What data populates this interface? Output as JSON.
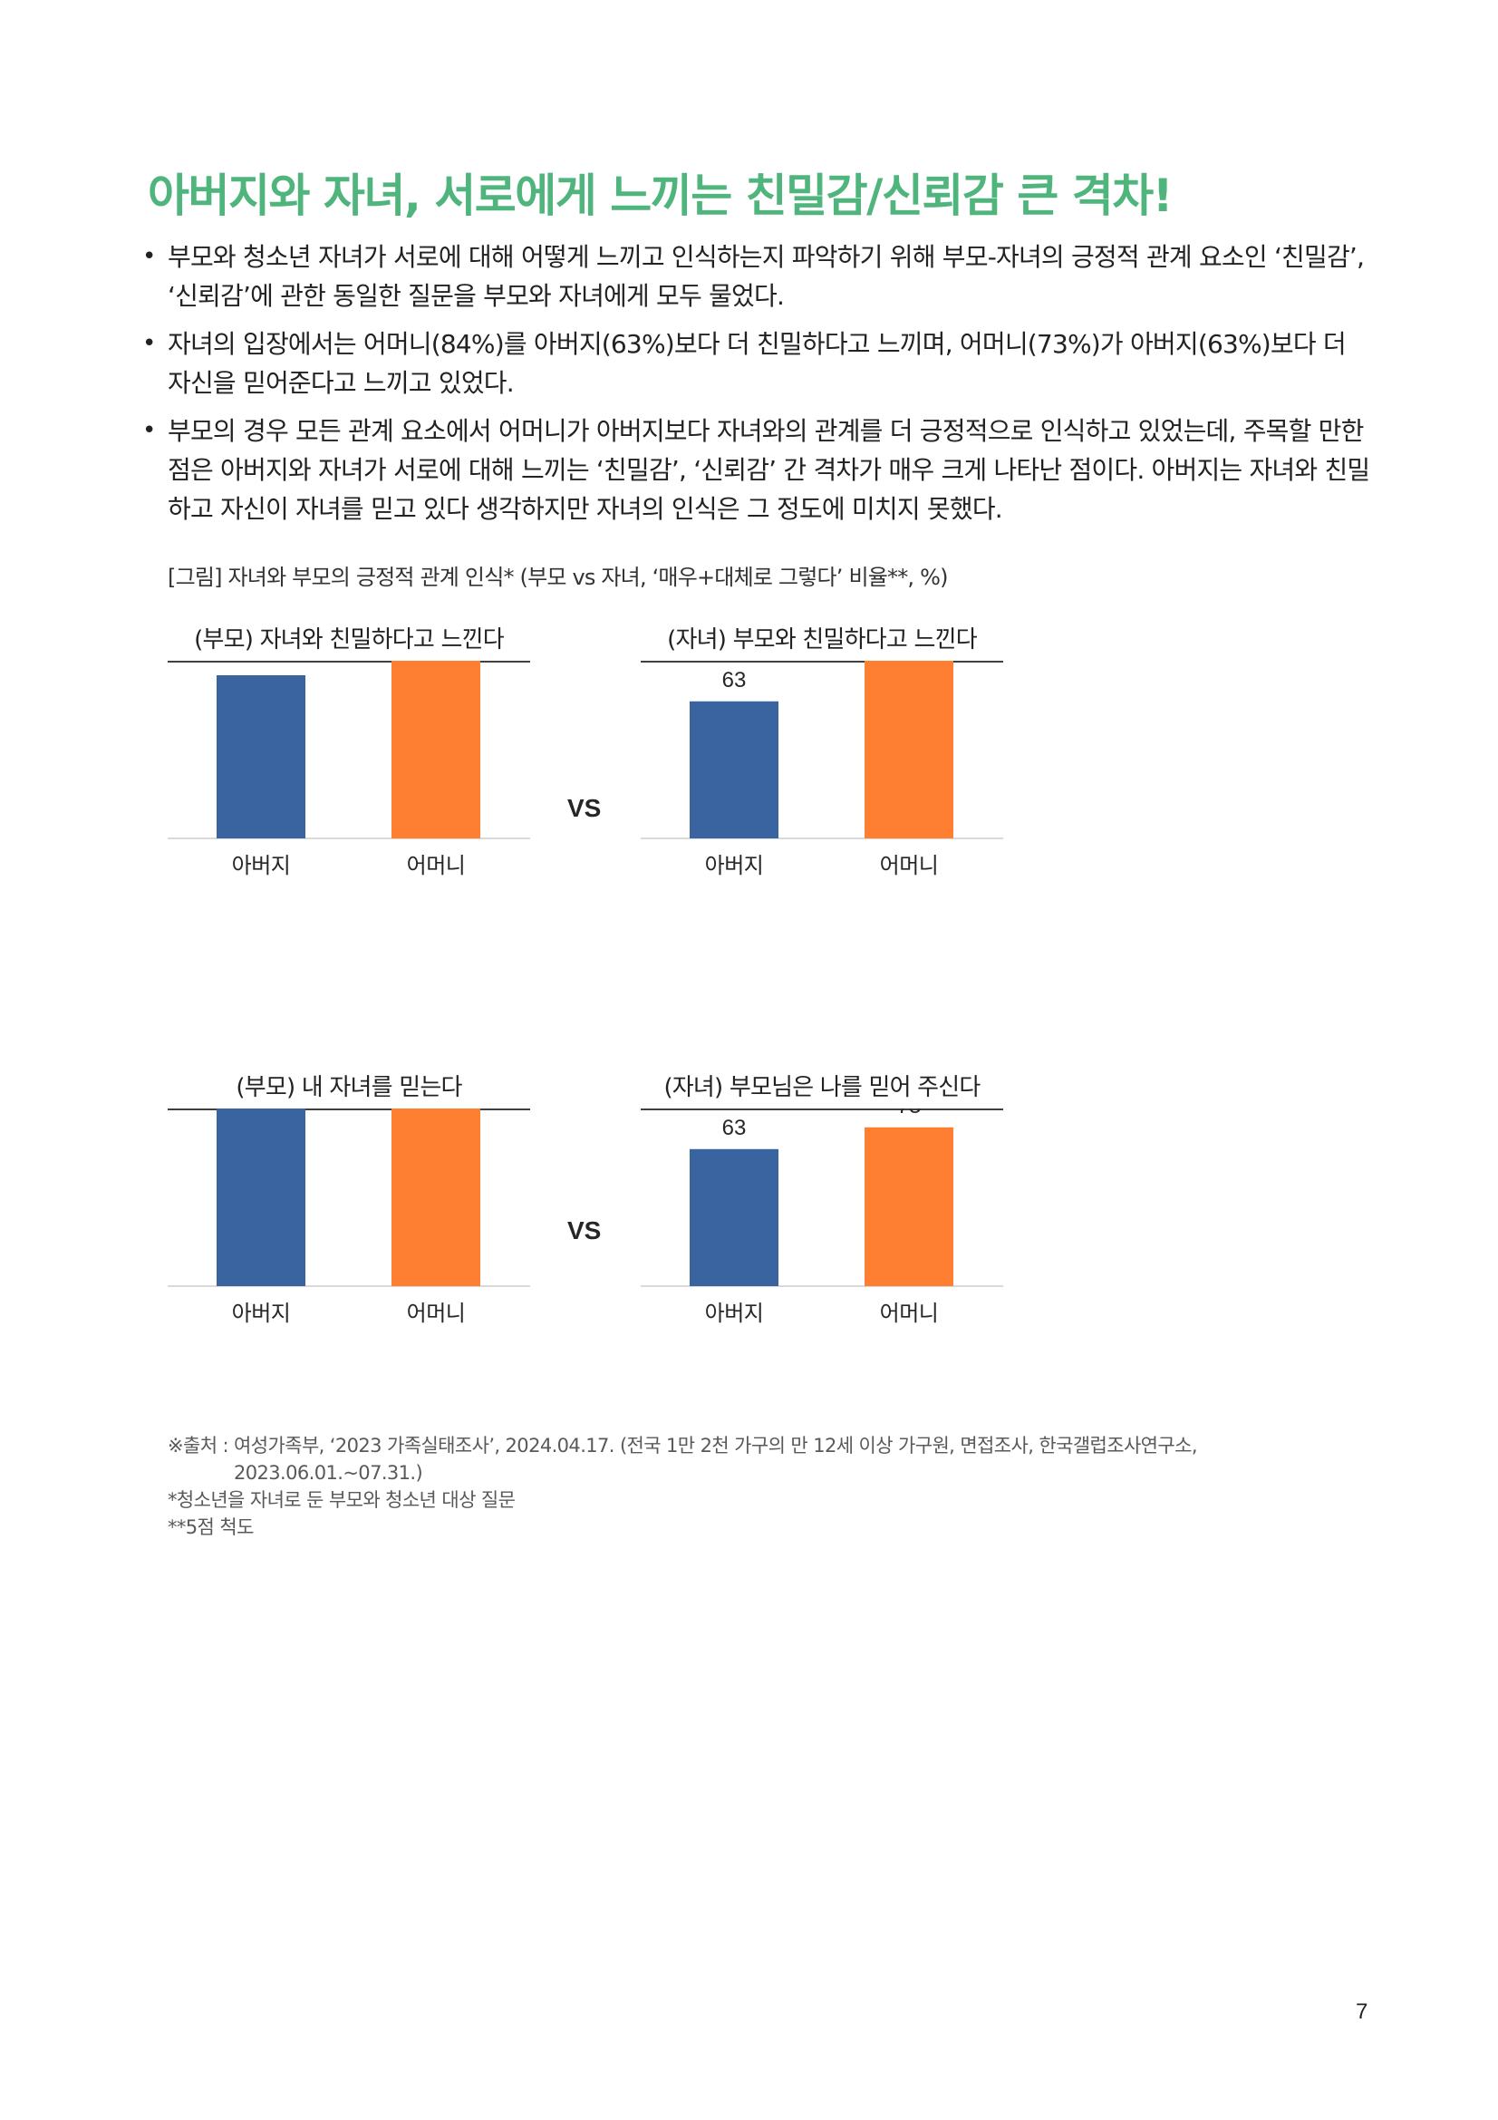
{
  "title": "아버지와 자녀, 서로에게 느끼는 친밀감/신뢰감 큰 격차!",
  "bullets": [
    "부모와 청소년 자녀가 서로에 대해 어떻게 느끼고 인식하는지 파악하기 위해 부모-자녀의 긍정적 관계 요소인 ‘친밀감’, ‘신뢰감’에 관한 동일한 질문을 부모와 자녀에게 모두 물었다.",
    "자녀의 입장에서는 어머니(84%)를 아버지(63%)보다 더 친밀하다고 느끼며, 어머니(73%)가 아버지(63%)보다 더 자신을 믿어준다고 느끼고 있었다.",
    "부모의 경우 모든 관계 요소에서 어머니가 아버지보다 자녀와의 관계를 더 긍정적으로 인식하고 있었는데, 주목할 만한 점은 아버지와 자녀가 서로에 대해 느끼는 ‘친밀감’, ‘신뢰감’ 간 격차가 매우 크게 나타난 점이다. 아버지는 자녀와 친밀하고 자신이 자녀를 믿고 있다 생각하지만 자녀의 인식은 그 정도에 미치지 못했다."
  ],
  "figure_caption": "[그림] 자녀와 부모의 긍정적 관계 인식* (부모 vs 자녀, ‘매우+대체로 그렇다’ 비율**, %)",
  "vs_label": "VS",
  "colors": {
    "title": "#4fb57c",
    "father": "#3a64a0",
    "mother": "#ff7f32",
    "axis": "#d9d9d9",
    "title_rule": "#404040"
  },
  "chart_data": [
    {
      "type": "bar",
      "title": "(부모) 자녀와 친밀하다고 느낀다",
      "categories": [
        "아버지",
        "어머니"
      ],
      "values": [
        75,
        84
      ],
      "ylim": [
        0,
        100
      ],
      "xlabel": "",
      "ylabel": "",
      "grid": false
    },
    {
      "type": "bar",
      "title": "(자녀) 부모와 친밀하다고 느낀다",
      "categories": [
        "아버지",
        "어머니"
      ],
      "values": [
        63,
        84
      ],
      "ylim": [
        0,
        100
      ],
      "xlabel": "",
      "ylabel": "",
      "grid": false
    },
    {
      "type": "bar",
      "title": "(부모) 내 자녀를 믿는다",
      "categories": [
        "아버지",
        "어머니"
      ],
      "values": [
        84,
        86
      ],
      "ylim": [
        0,
        100
      ],
      "xlabel": "",
      "ylabel": "",
      "grid": false
    },
    {
      "type": "bar",
      "title": "(자녀) 부모님은 나를 믿어 주신다",
      "categories": [
        "아버지",
        "어머니"
      ],
      "values": [
        63,
        73
      ],
      "ylim": [
        0,
        100
      ],
      "xlabel": "",
      "ylabel": "",
      "grid": false
    }
  ],
  "notes": {
    "source_line1": "※출처 : 여성가족부, ‘2023 가족실태조사’, 2024.04.17. (전국 1만 2천 가구의 만 12세 이상 가구원, 면접조사, 한국갤럽조사연구소,",
    "source_line2": "2023.06.01.~07.31.)",
    "note1": "*청소년을 자녀로 둔 부모와 청소년 대상 질문",
    "note2": "**5점 척도"
  },
  "page_number": "7"
}
